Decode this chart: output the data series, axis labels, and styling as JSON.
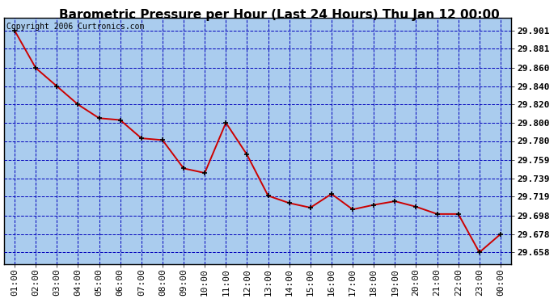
{
  "title": "Barometric Pressure per Hour (Last 24 Hours) Thu Jan 12 00:00",
  "copyright": "Copyright 2006 Curtronics.com",
  "x_labels": [
    "01:00",
    "02:00",
    "03:00",
    "04:00",
    "05:00",
    "06:00",
    "07:00",
    "08:00",
    "09:00",
    "10:00",
    "11:00",
    "12:00",
    "13:00",
    "14:00",
    "15:00",
    "16:00",
    "17:00",
    "18:00",
    "19:00",
    "20:00",
    "21:00",
    "22:00",
    "23:00",
    "00:00"
  ],
  "y_values": [
    29.901,
    29.86,
    29.84,
    29.82,
    29.805,
    29.803,
    29.783,
    29.781,
    29.75,
    29.745,
    29.8,
    29.765,
    29.72,
    29.712,
    29.707,
    29.722,
    29.705,
    29.71,
    29.714,
    29.708,
    29.7,
    29.7,
    29.658,
    29.678
  ],
  "y_ticks": [
    29.658,
    29.678,
    29.698,
    29.719,
    29.739,
    29.759,
    29.78,
    29.8,
    29.82,
    29.84,
    29.86,
    29.881,
    29.901
  ],
  "y_min": 29.645,
  "y_max": 29.915,
  "line_color": "#cc0000",
  "marker_color": "#000000",
  "grid_color": "#0000bb",
  "plot_bg_color": "#aaccee",
  "fig_bg_color": "#ffffff",
  "title_fontsize": 11,
  "copyright_fontsize": 7,
  "tick_fontsize": 8,
  "marker_size": 5,
  "marker_style": "+",
  "line_width": 1.4
}
